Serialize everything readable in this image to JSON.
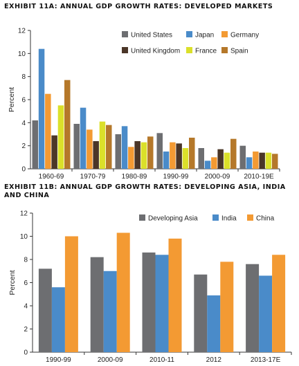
{
  "chart_data": [
    {
      "type": "bar",
      "title": "EXHIBIT 11A: ANNUAL GDP GROWTH RATES: DEVELOPED MARKETS",
      "ylabel": "Percent",
      "ylim": [
        0,
        12
      ],
      "yticks": [
        0,
        2,
        4,
        6,
        8,
        10,
        12
      ],
      "grid": false,
      "legend": "top-right",
      "categories": [
        "1960-69",
        "1970-79",
        "1980-89",
        "1990-99",
        "2000-09",
        "2010-19E"
      ],
      "series": [
        {
          "name": "United States",
          "color": "#6d6e71",
          "values": [
            4.2,
            3.9,
            3.0,
            3.1,
            1.8,
            2.0
          ]
        },
        {
          "name": "Japan",
          "color": "#4a8bc9",
          "values": [
            10.4,
            5.3,
            3.7,
            1.5,
            0.7,
            1.0
          ]
        },
        {
          "name": "Germany",
          "color": "#f39a33",
          "values": [
            6.5,
            3.4,
            1.9,
            2.3,
            1.0,
            1.5
          ]
        },
        {
          "name": "United Kingdom",
          "color": "#4b3628",
          "values": [
            2.9,
            2.4,
            2.4,
            2.2,
            1.7,
            1.4
          ]
        },
        {
          "name": "France",
          "color": "#dbe02a",
          "values": [
            5.5,
            4.1,
            2.3,
            1.8,
            1.4,
            1.4
          ]
        },
        {
          "name": "Spain",
          "color": "#b5782a",
          "values": [
            7.7,
            3.8,
            2.8,
            2.7,
            2.6,
            1.3
          ]
        }
      ]
    },
    {
      "type": "bar",
      "title": "EXHIBIT 11B: ANNUAL GDP GROWTH RATES: DEVELOPING ASIA, INDIA AND CHINA",
      "ylabel": "Percent",
      "ylim": [
        0,
        12
      ],
      "yticks": [
        0,
        2,
        4,
        6,
        8,
        10,
        12
      ],
      "grid": false,
      "legend": "top",
      "categories": [
        "1990-99",
        "2000-09",
        "2010-11",
        "2012",
        "2013-17E"
      ],
      "series": [
        {
          "name": "Developing Asia",
          "color": "#6d6e71",
          "values": [
            7.2,
            8.2,
            8.6,
            6.7,
            7.6
          ]
        },
        {
          "name": "India",
          "color": "#4a8bc9",
          "values": [
            5.6,
            7.0,
            8.4,
            4.9,
            6.6
          ]
        },
        {
          "name": "China",
          "color": "#f39a33",
          "values": [
            10.0,
            10.3,
            9.8,
            7.8,
            8.4
          ]
        }
      ]
    }
  ]
}
